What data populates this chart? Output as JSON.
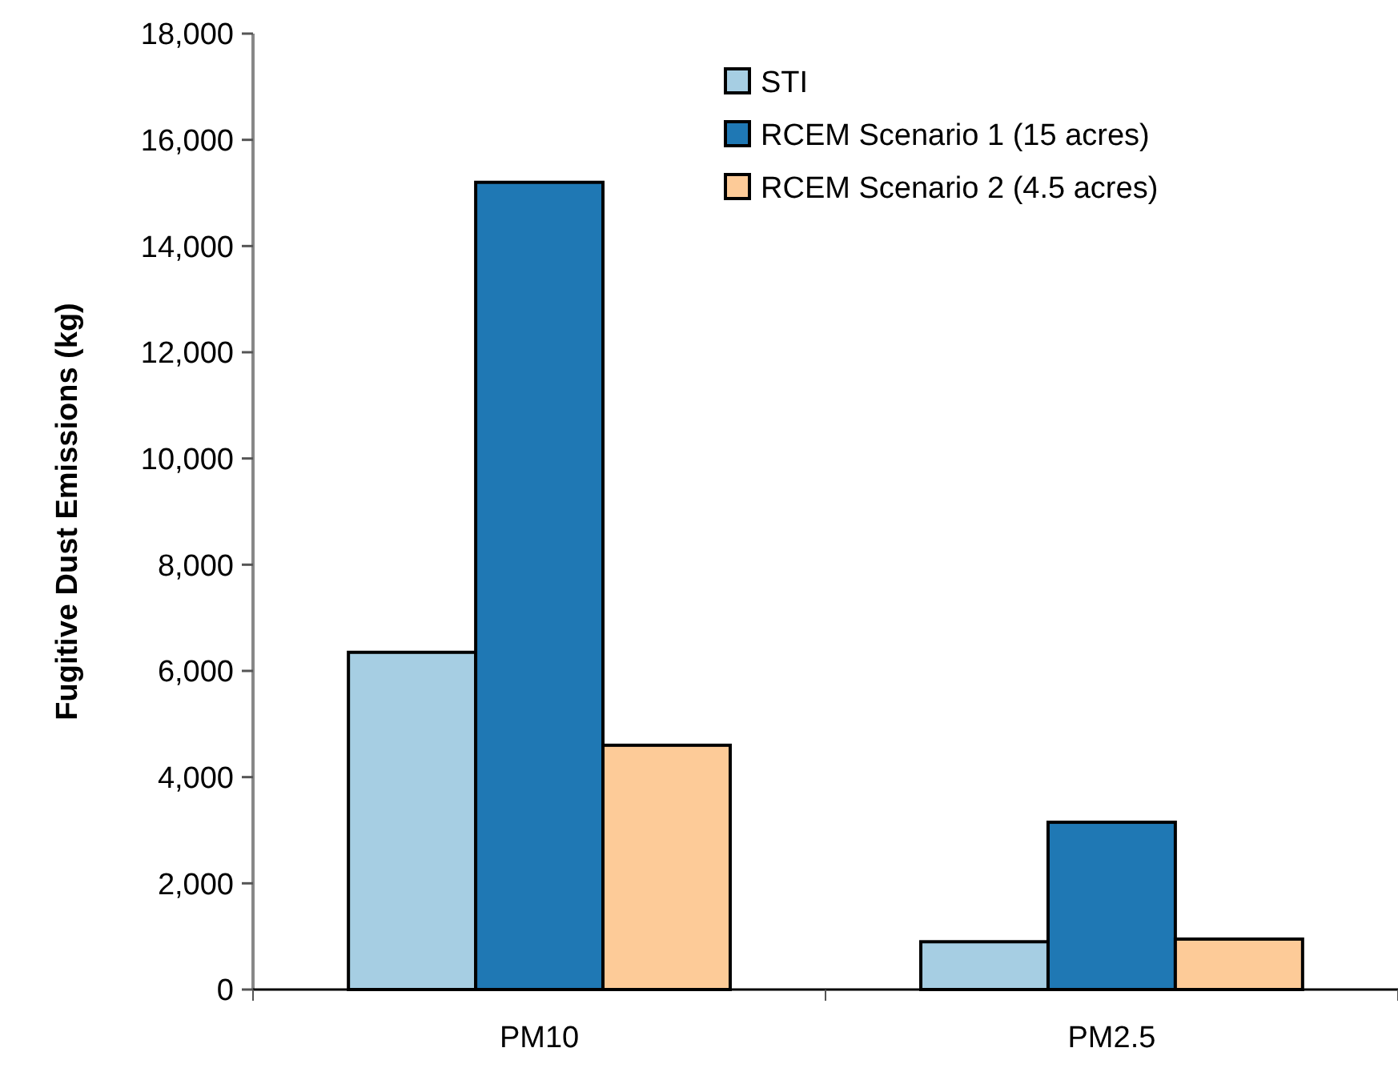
{
  "chart_data": {
    "type": "bar",
    "ylabel": "Fugitive Dust Emissions (kg)",
    "categories": [
      "PM10",
      "PM2.5"
    ],
    "series": [
      {
        "name": "STI",
        "color": "#a6cee3",
        "values": [
          6350,
          900
        ]
      },
      {
        "name": "RCEM Scenario 1 (15 acres)",
        "color": "#1f78b4",
        "values": [
          15200,
          3150
        ]
      },
      {
        "name": "RCEM Scenario 2 (4.5 acres)",
        "color": "#fdcb98",
        "values": [
          4600,
          950
        ]
      }
    ],
    "ylim": [
      0,
      18000
    ],
    "yticks": [
      {
        "value": 0,
        "label": "0"
      },
      {
        "value": 2000,
        "label": "2,000"
      },
      {
        "value": 4000,
        "label": "4,000"
      },
      {
        "value": 6000,
        "label": "6,000"
      },
      {
        "value": 8000,
        "label": "8,000"
      },
      {
        "value": 10000,
        "label": "10,000"
      },
      {
        "value": 12000,
        "label": "12,000"
      },
      {
        "value": 14000,
        "label": "14,000"
      },
      {
        "value": 16000,
        "label": "16,000"
      },
      {
        "value": 18000,
        "label": "18,000"
      }
    ],
    "grid": false,
    "legend": "top right"
  }
}
